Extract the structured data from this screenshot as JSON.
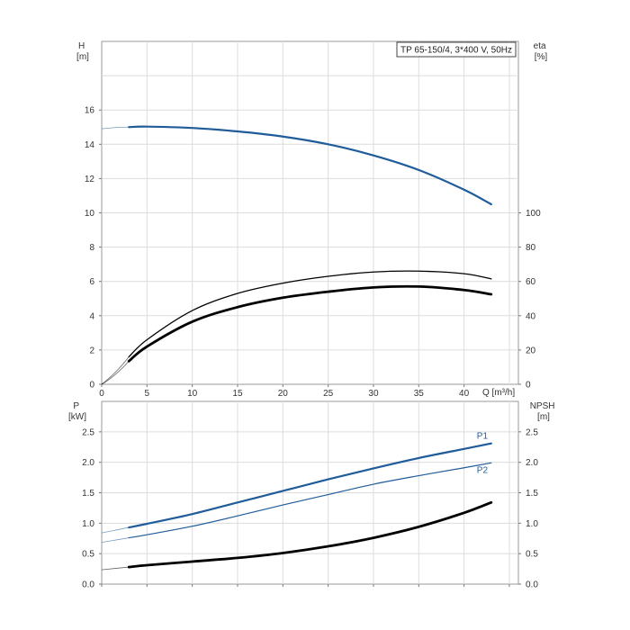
{
  "chart_data": [
    {
      "type": "line",
      "title": "TP 65-150/4, 3*400 V, 50Hz",
      "xlabel": "Q [m³/h]",
      "ylabel_left": [
        "H",
        "[m]"
      ],
      "ylabel_right": [
        "eta",
        "[%]"
      ],
      "xlim": [
        0,
        46
      ],
      "ylim_left": [
        0,
        20
      ],
      "ylim_right": [
        0,
        200
      ],
      "x_ticks": [
        0,
        5,
        10,
        15,
        20,
        25,
        30,
        35,
        40
      ],
      "y_ticks_left": [
        0,
        2,
        4,
        6,
        8,
        10,
        12,
        14,
        16
      ],
      "y_ticks_right": [
        0,
        20,
        40,
        60,
        80,
        100
      ],
      "grid": true,
      "series": [
        {
          "color": "#1f5c99",
          "x": [
            3,
            5,
            10,
            15,
            20,
            25,
            30,
            35,
            40,
            43
          ],
          "values": [
            15.0,
            15.03,
            14.95,
            14.75,
            14.45,
            14.0,
            13.35,
            12.5,
            11.35,
            10.5
          ]
        },
        {
          "color": "#000000",
          "x": [
            3,
            5,
            10,
            15,
            20,
            25,
            30,
            35,
            40,
            43
          ],
          "values": [
            1.6,
            2.6,
            4.3,
            5.3,
            5.9,
            6.3,
            6.55,
            6.6,
            6.45,
            6.15
          ]
        },
        {
          "color": "#000000",
          "x": [
            3,
            5,
            10,
            15,
            20,
            25,
            30,
            35,
            40,
            43
          ],
          "values": [
            1.35,
            2.2,
            3.65,
            4.5,
            5.05,
            5.4,
            5.65,
            5.7,
            5.5,
            5.25
          ]
        }
      ]
    },
    {
      "type": "line",
      "xlabel": "",
      "ylabel_left": [
        "P",
        "[kW]"
      ],
      "ylabel_right": [
        "NPSH",
        "[m]"
      ],
      "xlim": [
        0,
        46
      ],
      "ylim": [
        0,
        3
      ],
      "y_ticks_left": [
        "0.0",
        "0.5",
        "1.0",
        "1.5",
        "2.0",
        "2.5"
      ],
      "y_ticks_right": [
        "0.0",
        "0.5",
        "1.0",
        "1.5",
        "2.0",
        "2.5"
      ],
      "grid": true,
      "series": [
        {
          "name": "P1",
          "color": "#1f5c99",
          "x": [
            3,
            5,
            10,
            15,
            20,
            25,
            30,
            35,
            40,
            43
          ],
          "values": [
            0.93,
            0.99,
            1.15,
            1.34,
            1.53,
            1.72,
            1.9,
            2.07,
            2.22,
            2.31
          ]
        },
        {
          "name": "P2",
          "color": "#1f5c99",
          "x": [
            3,
            5,
            10,
            15,
            20,
            25,
            30,
            35,
            40,
            43
          ],
          "values": [
            0.76,
            0.81,
            0.95,
            1.12,
            1.3,
            1.47,
            1.64,
            1.78,
            1.91,
            1.99
          ]
        },
        {
          "color": "#000000",
          "x": [
            3,
            5,
            10,
            15,
            20,
            25,
            30,
            35,
            40,
            43
          ],
          "values": [
            0.28,
            0.31,
            0.37,
            0.43,
            0.51,
            0.62,
            0.76,
            0.94,
            1.17,
            1.34
          ]
        }
      ]
    }
  ]
}
